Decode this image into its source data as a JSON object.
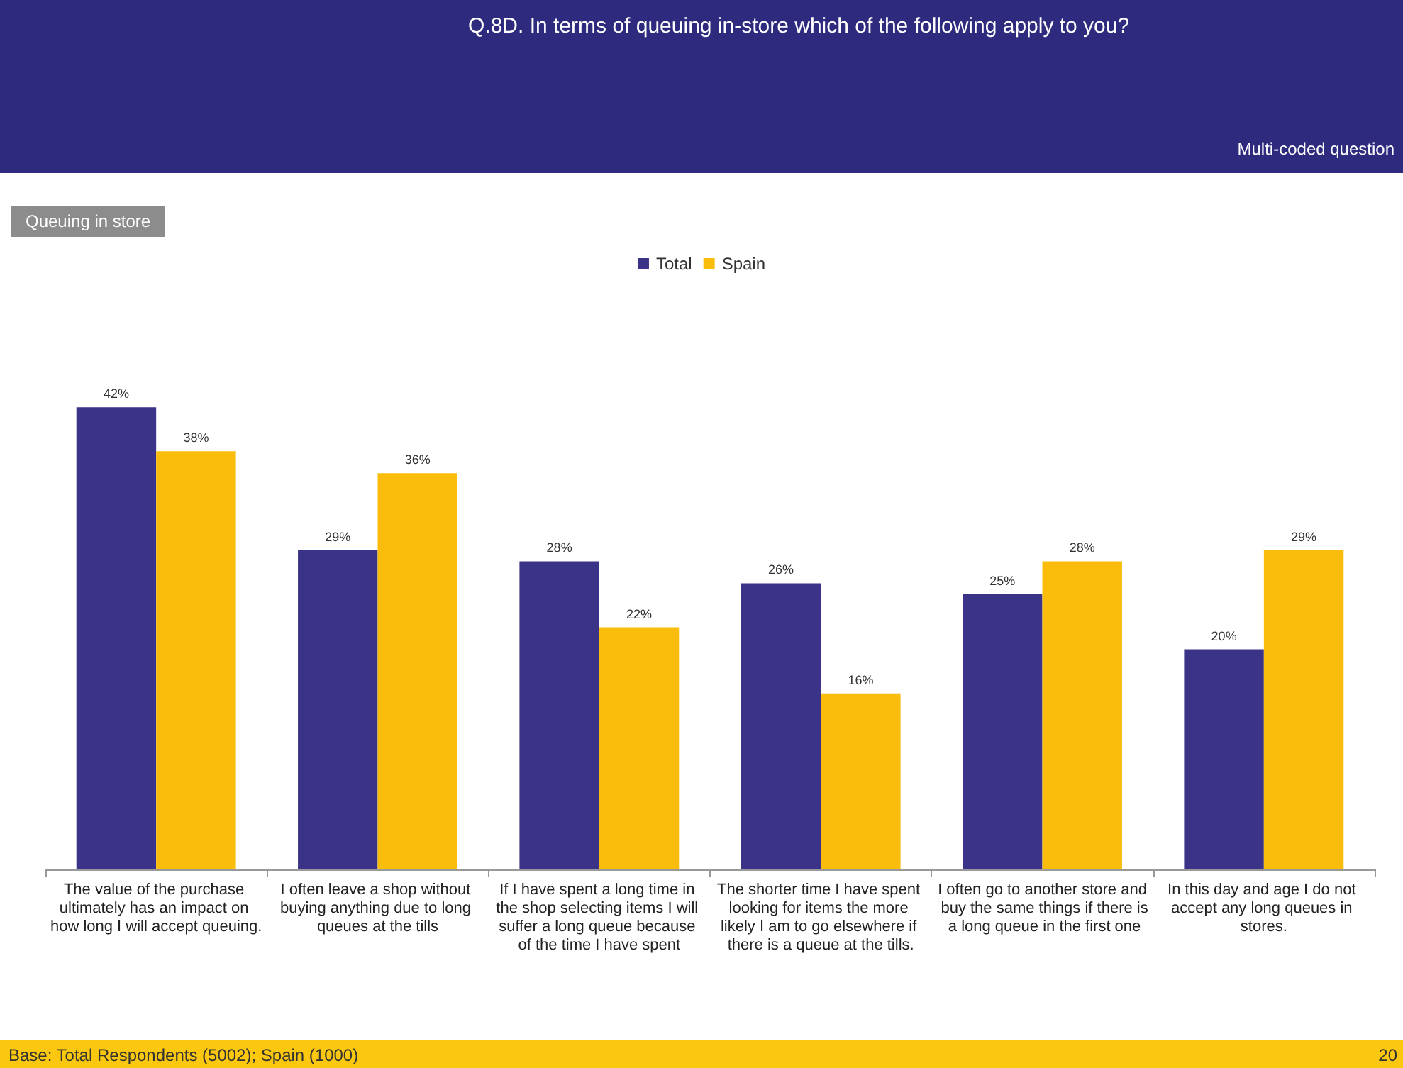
{
  "chart_data": {
    "type": "bar",
    "title": "Q.8D. In terms of queuing in-store which of the following apply to you?",
    "subtitle": "Queuing in store",
    "annotations": [
      "Multi-coded question",
      "Base: Total Respondents (5002); Spain (1000)",
      "20"
    ],
    "categories": [
      "The value of the purchase ultimately has an impact on how long I will accept queuing.",
      "I often leave a shop without buying anything due to long queues at the tills",
      "If I have spent a long time in the shop selecting items I will suffer a long queue because of the time I have spent",
      "The shorter time I have spent looking for items the more likely I am to go elsewhere if there is a queue at the tills.",
      "I often go to another store and buy the same things if there is a long queue in the first one",
      "In this day and age I do not accept any long queues in stores."
    ],
    "series": [
      {
        "name": "Total",
        "color": "#3b3388",
        "values": [
          42,
          29,
          28,
          26,
          25,
          20
        ],
        "value_labels": [
          "42%",
          "29%",
          "28%",
          "26%",
          "25%",
          "20%"
        ]
      },
      {
        "name": "Spain",
        "color": "#fbbd0c",
        "values": [
          38,
          36,
          22,
          16,
          28,
          29
        ],
        "value_labels": [
          "38%",
          "36%",
          "22%",
          "16%",
          "28%",
          "29%"
        ]
      }
    ],
    "legend": "top"
  }
}
